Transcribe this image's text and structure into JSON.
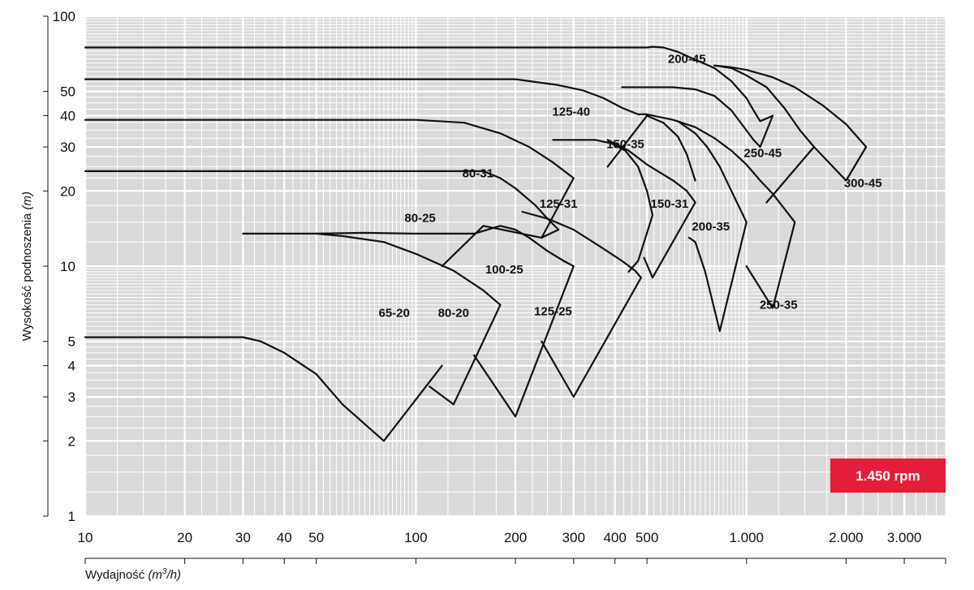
{
  "chart_data": {
    "type": "line",
    "x_scale": "log",
    "y_scale": "log",
    "xlim": [
      10,
      4000
    ],
    "ylim": [
      1,
      100
    ],
    "xlabel_text": "Wydajność ",
    "xlabel_unit_pre": "(m",
    "xlabel_unit_sup": "3",
    "xlabel_unit_post": "/h)",
    "ylabel_text": "Wysokość podnoszenia ",
    "ylabel_unit": "(m)",
    "grid": true,
    "background_color": "#d9d9d9",
    "grid_color": "#ffffff",
    "curve_color": "#111111",
    "x_ticks": [
      {
        "v": 10,
        "label": "10"
      },
      {
        "v": 20,
        "label": "20"
      },
      {
        "v": 30,
        "label": "30"
      },
      {
        "v": 40,
        "label": "40"
      },
      {
        "v": 50,
        "label": "50"
      },
      {
        "v": 100,
        "label": "100"
      },
      {
        "v": 200,
        "label": "200"
      },
      {
        "v": 300,
        "label": "300"
      },
      {
        "v": 400,
        "label": "400"
      },
      {
        "v": 500,
        "label": "500"
      },
      {
        "v": 1000,
        "label": "1.000"
      },
      {
        "v": 2000,
        "label": "2.000"
      },
      {
        "v": 3000,
        "label": "3.000"
      }
    ],
    "y_ticks": [
      {
        "v": 1,
        "label": "1"
      },
      {
        "v": 2,
        "label": "2"
      },
      {
        "v": 3,
        "label": "3"
      },
      {
        "v": 4,
        "label": "4"
      },
      {
        "v": 5,
        "label": "5"
      },
      {
        "v": 10,
        "label": "10"
      },
      {
        "v": 20,
        "label": "20"
      },
      {
        "v": 30,
        "label": "30"
      },
      {
        "v": 40,
        "label": "40"
      },
      {
        "v": 50,
        "label": "50"
      },
      {
        "v": 100,
        "label": "100"
      }
    ],
    "pump_zones": [
      {
        "label": "65-20",
        "label_at": [
          86,
          6.5
        ],
        "outline": [
          [
            10,
            5.2
          ],
          [
            30,
            5.2
          ],
          [
            34,
            5.0
          ],
          [
            40,
            4.5
          ],
          [
            50,
            3.7
          ],
          [
            60,
            2.8
          ],
          [
            80,
            2.0
          ],
          [
            120,
            4.0
          ]
        ]
      },
      {
        "label": "80-20",
        "label_at": [
          130,
          6.5
        ],
        "outline": [
          [
            110,
            3.3
          ],
          [
            130,
            2.8
          ],
          [
            180,
            7.0
          ],
          [
            160,
            8.0
          ],
          [
            130,
            9.6
          ],
          [
            100,
            11.2
          ],
          [
            80,
            12.5
          ],
          [
            60,
            13.2
          ],
          [
            50,
            13.5
          ],
          [
            40,
            13.5
          ],
          [
            30,
            13.5
          ]
        ]
      },
      {
        "label": "100-25",
        "label_at": [
          185,
          9.7
        ],
        "outline": [
          [
            150,
            4.4
          ],
          [
            200,
            2.5
          ],
          [
            300,
            10.0
          ],
          [
            280,
            10.5
          ],
          [
            250,
            11.5
          ],
          [
            220,
            13.0
          ],
          [
            200,
            14.0
          ],
          [
            180,
            14.5
          ],
          [
            150,
            13.5
          ],
          [
            100,
            13.5
          ],
          [
            70,
            13.6
          ],
          [
            50,
            13.5
          ]
        ]
      },
      {
        "label": "125-25",
        "label_at": [
          260,
          6.6
        ],
        "outline": [
          [
            240,
            5.0
          ],
          [
            300,
            3.0
          ],
          [
            480,
            9.0
          ],
          [
            460,
            9.6
          ],
          [
            420,
            10.5
          ],
          [
            360,
            12.0
          ],
          [
            300,
            14.0
          ],
          [
            250,
            15.5
          ],
          [
            210,
            16.5
          ]
        ]
      },
      {
        "label": "80-25",
        "label_at": [
          103,
          15.6
        ],
        "outline": [
          [
            10,
            24
          ],
          [
            160,
            24
          ],
          [
            180,
            22.5
          ],
          [
            200,
            20.5
          ],
          [
            230,
            17.5
          ],
          [
            250,
            15.5
          ],
          [
            270,
            14.0
          ],
          [
            240,
            13.0
          ],
          [
            160,
            14.5
          ],
          [
            120,
            10.0
          ]
        ]
      },
      {
        "label": "80-31",
        "label_at": [
          154,
          23.5
        ],
        "outline": [
          [
            10,
            38.5
          ],
          [
            100,
            38.5
          ],
          [
            140,
            37.5
          ],
          [
            180,
            34.0
          ],
          [
            220,
            30.0
          ],
          [
            260,
            26.0
          ],
          [
            300,
            22.5
          ],
          [
            240,
            13.0
          ]
        ]
      },
      {
        "label": "125-31",
        "label_at": [
          270,
          17.8
        ],
        "outline": [
          [
            260,
            32
          ],
          [
            350,
            32
          ],
          [
            390,
            31
          ],
          [
            430,
            29
          ],
          [
            470,
            25
          ],
          [
            500,
            20
          ],
          [
            520,
            16
          ],
          [
            470,
            10.5
          ],
          [
            440,
            9.5
          ]
        ]
      },
      {
        "label": "150-31",
        "label_at": [
          585,
          17.8
        ],
        "outline": [
          [
            490,
            10.8
          ],
          [
            520,
            9.0
          ],
          [
            700,
            18.0
          ],
          [
            660,
            20.0
          ],
          [
            600,
            22.0
          ],
          [
            500,
            25.5
          ],
          [
            440,
            29.0
          ],
          [
            380,
            32.0
          ]
        ]
      },
      {
        "label": "150-35",
        "label_at": [
          430,
          30.8
        ],
        "outline": [
          [
            380,
            25.0
          ],
          [
            500,
            40.0
          ],
          [
            560,
            37.5
          ],
          [
            620,
            33.0
          ],
          [
            660,
            28.0
          ],
          [
            700,
            22.0
          ]
        ]
      },
      {
        "label": "125-40",
        "label_at": [
          295,
          41.6
        ],
        "outline": [
          [
            10,
            56
          ],
          [
            200,
            56
          ],
          [
            270,
            53
          ],
          [
            320,
            50.5
          ],
          [
            370,
            47
          ],
          [
            420,
            43
          ],
          [
            470,
            40.5
          ],
          [
            500,
            40.5
          ]
        ]
      },
      {
        "label": "200-35",
        "label_at": [
          780,
          14.4
        ],
        "outline": [
          [
            670,
            13.0
          ],
          [
            700,
            12.5
          ],
          [
            750,
            9.5
          ],
          [
            830,
            5.5
          ],
          [
            1000,
            15.0
          ],
          [
            900,
            20.0
          ],
          [
            830,
            25.0
          ],
          [
            760,
            30.0
          ],
          [
            700,
            34.0
          ],
          [
            620,
            38.0
          ]
        ]
      },
      {
        "label": "250-35",
        "label_at": [
          1250,
          7.0
        ],
        "outline": [
          [
            1000,
            10.0
          ],
          [
            1200,
            6.8
          ],
          [
            1400,
            15.0
          ],
          [
            1300,
            17.0
          ],
          [
            1200,
            19.5
          ],
          [
            1100,
            22.0
          ],
          [
            1000,
            25.5
          ],
          [
            900,
            29.0
          ],
          [
            800,
            32.5
          ],
          [
            700,
            36.0
          ],
          [
            600,
            38.5
          ],
          [
            500,
            40.5
          ]
        ]
      },
      {
        "label": "250-45",
        "label_at": [
          1120,
          28.4
        ],
        "outline": [
          [
            1150,
            18.0
          ],
          [
            1600,
            30.0
          ],
          [
            1450,
            35.0
          ],
          [
            1300,
            43.0
          ],
          [
            1150,
            52.0
          ],
          [
            1000,
            58.0
          ],
          [
            900,
            62.0
          ],
          [
            800,
            63.5
          ]
        ]
      },
      {
        "label": "200-45",
        "label_at": [
          660,
          67.6
        ],
        "outline": [
          [
            10,
            75
          ],
          [
            500,
            75
          ],
          [
            520,
            75.5
          ],
          [
            560,
            75
          ],
          [
            620,
            72
          ],
          [
            700,
            67
          ],
          [
            800,
            62
          ],
          [
            900,
            55
          ],
          [
            1000,
            47
          ],
          [
            1050,
            42
          ],
          [
            1100,
            38
          ],
          [
            1200,
            40
          ],
          [
            1100,
            30
          ],
          [
            1050,
            32
          ],
          [
            900,
            42
          ],
          [
            800,
            48
          ],
          [
            700,
            51
          ],
          [
            600,
            52
          ],
          [
            500,
            52
          ],
          [
            420,
            52
          ]
        ]
      },
      {
        "label": "300-45",
        "label_at": [
          2250,
          21.5
        ],
        "outline": [
          [
            1600,
            30.0
          ],
          [
            2000,
            22.0
          ],
          [
            2300,
            30.0
          ],
          [
            2000,
            37.0
          ],
          [
            1700,
            44.0
          ],
          [
            1400,
            52.0
          ],
          [
            1200,
            57.0
          ],
          [
            1000,
            61.0
          ],
          [
            900,
            62.5
          ],
          [
            800,
            63.5
          ]
        ]
      }
    ],
    "badge": {
      "label": "1.450 rpm",
      "color": "#e31e3a"
    }
  }
}
